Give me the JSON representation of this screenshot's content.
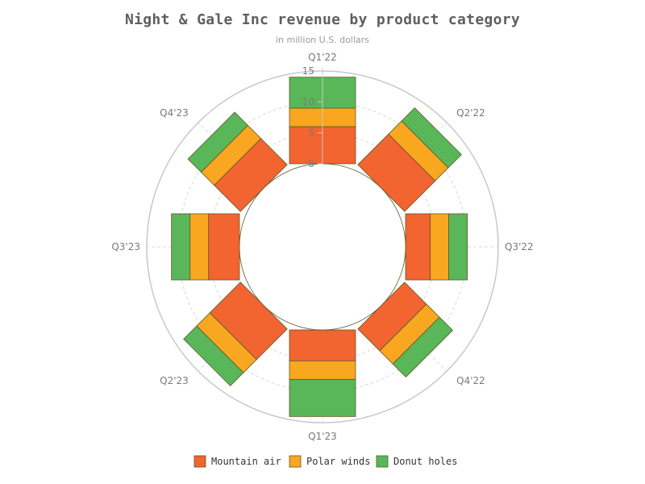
{
  "chart_data": {
    "type": "bar",
    "title": "Night & Gale Inc revenue by product category",
    "subtitle": "in million U.S. dollars",
    "categories": [
      "Q1'22",
      "Q2'22",
      "Q3'22",
      "Q4'22",
      "Q1'23",
      "Q2'23",
      "Q3'23",
      "Q4'23"
    ],
    "stacked": true,
    "polar": true,
    "radial_axis": {
      "ticks": [
        0,
        5,
        10,
        15
      ],
      "tick_labels": [
        "0",
        "5",
        "10",
        "15"
      ],
      "max": 15
    },
    "grid": true,
    "legend_position": "bottom",
    "series": [
      {
        "name": "Mountain air",
        "color": "#f26430",
        "values": [
          6,
          7,
          4,
          5,
          5,
          7,
          5,
          6
        ]
      },
      {
        "name": "Polar winds",
        "color": "#f9a620",
        "values": [
          3,
          3,
          3,
          3,
          3,
          3,
          3,
          3
        ]
      },
      {
        "name": "Donut holes",
        "color": "#59b759",
        "values": [
          5,
          3,
          3,
          3,
          6,
          3,
          3,
          3
        ]
      }
    ]
  }
}
